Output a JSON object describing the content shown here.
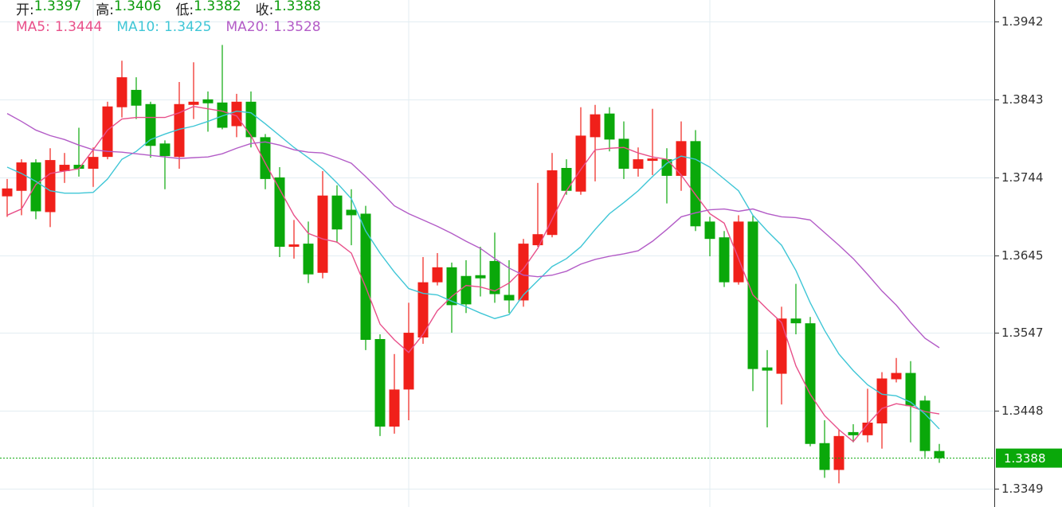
{
  "chart_data": {
    "type": "candlestick",
    "ohlc_header": [
      {
        "label": "开:",
        "value": 1.3397
      },
      {
        "label": "高:",
        "value": 1.3406
      },
      {
        "label": "低:",
        "value": 1.3382
      },
      {
        "label": "收:",
        "value": 1.3388
      }
    ],
    "last_price": 1.3388,
    "up_color": "#f0201a",
    "down_color": "#0aa80a",
    "ylim": [
      1.3326,
      1.3969
    ],
    "yticks": [
      1.3942,
      1.3843,
      1.3744,
      1.3645,
      1.3547,
      1.3448,
      1.3349
    ],
    "grid": true,
    "open": [
      1.372,
      1.3727,
      1.3763,
      1.37,
      1.3752,
      1.376,
      1.3755,
      1.377,
      1.3833,
      1.3855,
      1.3837,
      1.3787,
      1.377,
      1.3836,
      1.3843,
      1.3839,
      1.3809,
      1.384,
      1.3795,
      1.3744,
      1.3656,
      1.366,
      1.3623,
      1.3721,
      1.3703,
      1.3698,
      1.3539,
      1.3428,
      1.3475,
      1.3541,
      1.3611,
      1.363,
      1.3619,
      1.362,
      1.3638,
      1.3595,
      1.3588,
      1.3658,
      1.3671,
      1.3756,
      1.3726,
      1.3795,
      1.3825,
      1.3793,
      1.3755,
      1.3765,
      1.3767,
      1.3746,
      1.379,
      1.3688,
      1.3668,
      1.3611,
      1.3688,
      1.3503,
      1.3495,
      1.3565,
      1.3559,
      1.3407,
      1.3373,
      1.3421,
      1.3417,
      1.3432,
      1.3488,
      1.3496,
      1.3461,
      1.3397
    ],
    "high": [
      1.3742,
      1.3767,
      1.3767,
      1.3781,
      1.3775,
      1.3807,
      1.3782,
      1.384,
      1.3892,
      1.3871,
      1.384,
      1.3791,
      1.3865,
      1.389,
      1.3853,
      1.3912,
      1.385,
      1.3853,
      1.3799,
      1.3757,
      1.369,
      1.3688,
      1.3752,
      1.3734,
      1.3729,
      1.3708,
      1.3545,
      1.352,
      1.3585,
      1.3643,
      1.3648,
      1.3636,
      1.3639,
      1.3656,
      1.3674,
      1.3639,
      1.3666,
      1.3737,
      1.3775,
      1.3767,
      1.3833,
      1.3836,
      1.3833,
      1.3815,
      1.3782,
      1.3831,
      1.3781,
      1.3815,
      1.3804,
      1.3694,
      1.3676,
      1.3696,
      1.3696,
      1.3525,
      1.358,
      1.3609,
      1.3567,
      1.3436,
      1.3424,
      1.3431,
      1.3476,
      1.3497,
      1.3515,
      1.3511,
      1.3467,
      1.3406
    ],
    "low": [
      1.3694,
      1.3696,
      1.3691,
      1.3681,
      1.3737,
      1.3745,
      1.3732,
      1.3767,
      1.382,
      1.3818,
      1.3769,
      1.3729,
      1.3755,
      1.3818,
      1.3802,
      1.3805,
      1.3795,
      1.3782,
      1.3729,
      1.3643,
      1.3641,
      1.361,
      1.3616,
      1.3661,
      1.3658,
      1.3525,
      1.3416,
      1.3419,
      1.3436,
      1.3533,
      1.3607,
      1.3547,
      1.3572,
      1.3593,
      1.3585,
      1.3572,
      1.358,
      1.3656,
      1.3668,
      1.3722,
      1.3722,
      1.3739,
      1.3777,
      1.3742,
      1.3745,
      1.3747,
      1.3711,
      1.3727,
      1.3676,
      1.3644,
      1.3605,
      1.3608,
      1.3473,
      1.3427,
      1.3456,
      1.3545,
      1.3403,
      1.3363,
      1.3356,
      1.3408,
      1.3408,
      1.34,
      1.3484,
      1.3408,
      1.3389,
      1.3382
    ],
    "close": [
      1.373,
      1.3763,
      1.3701,
      1.3766,
      1.376,
      1.3755,
      1.377,
      1.3834,
      1.3871,
      1.3835,
      1.3784,
      1.3771,
      1.3837,
      1.384,
      1.3838,
      1.3807,
      1.384,
      1.3795,
      1.3742,
      1.3656,
      1.3659,
      1.3621,
      1.3721,
      1.3678,
      1.3696,
      1.3538,
      1.3428,
      1.3475,
      1.3547,
      1.3611,
      1.363,
      1.3582,
      1.3583,
      1.3616,
      1.3596,
      1.3588,
      1.366,
      1.3672,
      1.3753,
      1.3727,
      1.3797,
      1.3824,
      1.3792,
      1.3755,
      1.3767,
      1.3768,
      1.3746,
      1.379,
      1.3682,
      1.3666,
      1.3611,
      1.3688,
      1.3501,
      1.3499,
      1.3565,
      1.3559,
      1.3406,
      1.3373,
      1.3416,
      1.3417,
      1.3433,
      1.3489,
      1.3496,
      1.3454,
      1.3397,
      1.3388
    ],
    "series": [
      {
        "name": "MA5:",
        "color": "#e8508a",
        "last": 1.3444,
        "values": [
          1.3696,
          1.3704,
          1.3735,
          1.3749,
          1.3752,
          1.3755,
          1.3779,
          1.3804,
          1.3818,
          1.382,
          1.382,
          1.382,
          1.3826,
          1.3834,
          1.3831,
          1.3828,
          1.3822,
          1.3797,
          1.3762,
          1.3729,
          1.3696,
          1.3673,
          1.3666,
          1.3662,
          1.3648,
          1.3605,
          1.3558,
          1.3538,
          1.3522,
          1.3545,
          1.3575,
          1.3593,
          1.3607,
          1.3605,
          1.36,
          1.361,
          1.3628,
          1.3654,
          1.3691,
          1.3727,
          1.3754,
          1.3779,
          1.3781,
          1.3782,
          1.3775,
          1.377,
          1.3767,
          1.3747,
          1.3722,
          1.3698,
          1.3686,
          1.3641,
          1.3595,
          1.3577,
          1.356,
          1.3505,
          1.3469,
          1.3442,
          1.3424,
          1.3409,
          1.3431,
          1.3451,
          1.3457,
          1.3454,
          1.3447,
          1.3444
        ]
      },
      {
        "name": "MA10:",
        "color": "#3fc6d6",
        "last": 1.3425,
        "values": [
          1.3757,
          1.3749,
          1.3739,
          1.3727,
          1.3724,
          1.3724,
          1.3725,
          1.3742,
          1.3767,
          1.3777,
          1.3792,
          1.3799,
          1.3805,
          1.3809,
          1.3815,
          1.3822,
          1.3828,
          1.3826,
          1.3812,
          1.3797,
          1.3782,
          1.3769,
          1.3755,
          1.3737,
          1.3717,
          1.3676,
          1.3648,
          1.3624,
          1.3603,
          1.3597,
          1.3595,
          1.3587,
          1.358,
          1.3572,
          1.3565,
          1.357,
          1.3595,
          1.3613,
          1.3631,
          1.3641,
          1.3656,
          1.3678,
          1.3698,
          1.3712,
          1.3727,
          1.3745,
          1.3762,
          1.3771,
          1.3767,
          1.3757,
          1.3742,
          1.3727,
          1.3696,
          1.3676,
          1.3658,
          1.3626,
          1.3585,
          1.355,
          1.352,
          1.3499,
          1.3481,
          1.3469,
          1.3467,
          1.3459,
          1.3444,
          1.3425
        ]
      },
      {
        "name": "MA20:",
        "color": "#b35cc7",
        "last": 1.3528,
        "values": [
          1.3825,
          1.3815,
          1.3804,
          1.3797,
          1.3792,
          1.3785,
          1.3779,
          1.3777,
          1.3776,
          1.3774,
          1.3772,
          1.377,
          1.3768,
          1.3769,
          1.377,
          1.3774,
          1.3781,
          1.3787,
          1.3789,
          1.3785,
          1.3779,
          1.3776,
          1.3775,
          1.3769,
          1.3762,
          1.3745,
          1.3727,
          1.3708,
          1.3698,
          1.369,
          1.3682,
          1.3673,
          1.3663,
          1.3654,
          1.3641,
          1.3629,
          1.362,
          1.3618,
          1.362,
          1.3625,
          1.3634,
          1.364,
          1.3644,
          1.3647,
          1.3651,
          1.3663,
          1.3678,
          1.3694,
          1.3699,
          1.3703,
          1.3704,
          1.3701,
          1.3704,
          1.3698,
          1.3694,
          1.3693,
          1.369,
          1.3674,
          1.3658,
          1.3641,
          1.3621,
          1.36,
          1.3582,
          1.356,
          1.354,
          1.3528
        ]
      }
    ]
  }
}
